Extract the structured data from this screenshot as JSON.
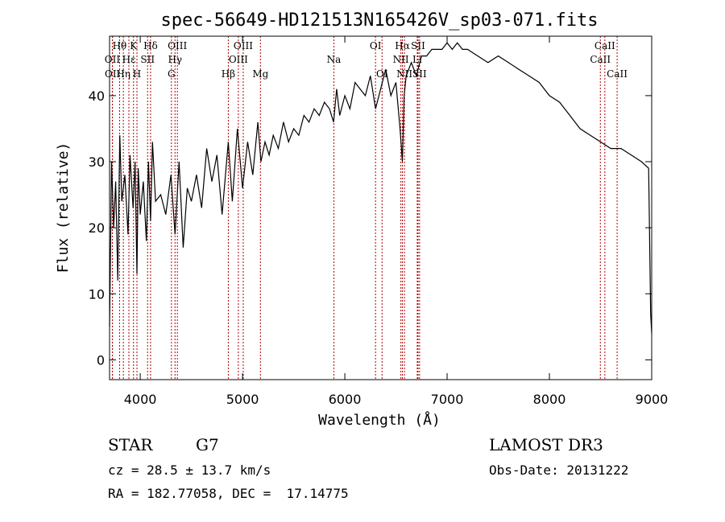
{
  "chart_data": {
    "type": "line",
    "title": "spec-56649-HD121513N165426V_sp03-071.fits",
    "xlabel": "Wavelength (Å)",
    "ylabel": "Flux (relative)",
    "xlim": [
      3700,
      9000
    ],
    "ylim": [
      -3,
      49
    ],
    "xticks": [
      4000,
      5000,
      6000,
      7000,
      8000,
      9000
    ],
    "yticks": [
      0,
      10,
      20,
      30,
      40
    ],
    "series": [
      {
        "name": "flux",
        "x": [
          3700,
          3720,
          3740,
          3760,
          3780,
          3800,
          3820,
          3850,
          3880,
          3900,
          3930,
          3950,
          3968,
          3980,
          4000,
          4030,
          4060,
          4080,
          4101,
          4120,
          4150,
          4200,
          4250,
          4300,
          4340,
          4380,
          4420,
          4460,
          4500,
          4550,
          4600,
          4650,
          4700,
          4750,
          4800,
          4861,
          4900,
          4950,
          5000,
          5050,
          5100,
          5150,
          5180,
          5220,
          5260,
          5300,
          5350,
          5400,
          5450,
          5500,
          5550,
          5600,
          5650,
          5700,
          5750,
          5800,
          5850,
          5890,
          5920,
          5950,
          6000,
          6050,
          6100,
          6150,
          6200,
          6250,
          6300,
          6350,
          6400,
          6450,
          6500,
          6540,
          6563,
          6580,
          6600,
          6650,
          6700,
          6750,
          6800,
          6850,
          6900,
          6950,
          7000,
          7050,
          7100,
          7150,
          7200,
          7300,
          7400,
          7500,
          7600,
          7700,
          7800,
          7900,
          8000,
          8100,
          8200,
          8300,
          8400,
          8500,
          8600,
          8700,
          8800,
          8900,
          8970,
          8990,
          9000
        ],
        "values": [
          5,
          30,
          20,
          27,
          12,
          34,
          24,
          28,
          19,
          31,
          23,
          30,
          13,
          29,
          22,
          27,
          18,
          30,
          21,
          33,
          24,
          25,
          22,
          28,
          19,
          30,
          17,
          26,
          24,
          28,
          23,
          32,
          27,
          31,
          22,
          33,
          24,
          35,
          26,
          33,
          28,
          36,
          30,
          33,
          31,
          34,
          32,
          36,
          33,
          35,
          34,
          37,
          36,
          38,
          37,
          39,
          38,
          36,
          41,
          37,
          40,
          38,
          42,
          41,
          40,
          43,
          38,
          41,
          44,
          40,
          42,
          35,
          30,
          40,
          43,
          45,
          43,
          46,
          46,
          47,
          47,
          47,
          48,
          47,
          48,
          47,
          47,
          46,
          45,
          46,
          45,
          44,
          43,
          42,
          40,
          39,
          37,
          35,
          34,
          33,
          32,
          32,
          31,
          30,
          29,
          7,
          4
        ]
      }
    ],
    "spectral_lines": [
      {
        "label": "Hθ",
        "x": 3798,
        "row": 0
      },
      {
        "label": "OII",
        "x": 3727,
        "row": 1
      },
      {
        "label": "OII",
        "x": 3729,
        "row": 2
      },
      {
        "label": "K",
        "x": 3934,
        "row": 0
      },
      {
        "label": "Hε",
        "x": 3889,
        "row": 1
      },
      {
        "label": "Hη",
        "x": 3835,
        "row": 2
      },
      {
        "label": "Hδ",
        "x": 4101,
        "row": 0
      },
      {
        "label": "SII",
        "x": 4072,
        "row": 1
      },
      {
        "label": "H",
        "x": 3968,
        "row": 2
      },
      {
        "label": "OIII",
        "x": 4363,
        "row": 0
      },
      {
        "label": "Hγ",
        "x": 4340,
        "row": 1
      },
      {
        "label": "G",
        "x": 4305,
        "row": 2
      },
      {
        "label": "OIII",
        "x": 5007,
        "row": 0
      },
      {
        "label": "OIII",
        "x": 4959,
        "row": 1
      },
      {
        "label": "Hβ",
        "x": 4861,
        "row": 2
      },
      {
        "label": "Mg",
        "x": 5175,
        "row": 2
      },
      {
        "label": "Na",
        "x": 5893,
        "row": 1
      },
      {
        "label": "OI",
        "x": 6300,
        "row": 0
      },
      {
        "label": "OI",
        "x": 6364,
        "row": 2
      },
      {
        "label": "Hα",
        "x": 6563,
        "row": 0
      },
      {
        "label": "SII",
        "x": 6716,
        "row": 0
      },
      {
        "label": "NII",
        "x": 6548,
        "row": 1
      },
      {
        "label": "Li",
        "x": 6708,
        "row": 1
      },
      {
        "label": "NII",
        "x": 6583,
        "row": 2
      },
      {
        "label": "SII",
        "x": 6731,
        "row": 2
      },
      {
        "label": "CaII",
        "x": 8542,
        "row": 0
      },
      {
        "label": "CaII",
        "x": 8498,
        "row": 1
      },
      {
        "label": "CaII",
        "x": 8662,
        "row": 2
      }
    ]
  },
  "info": {
    "object_class": "STAR",
    "subclass": "G7",
    "survey": "LAMOST DR3",
    "redshift": "cz = 28.5 ± 13.7 km/s",
    "obs_date": "Obs-Date: 20131222",
    "coords": "RA = 182.77058, DEC =  17.14775"
  }
}
